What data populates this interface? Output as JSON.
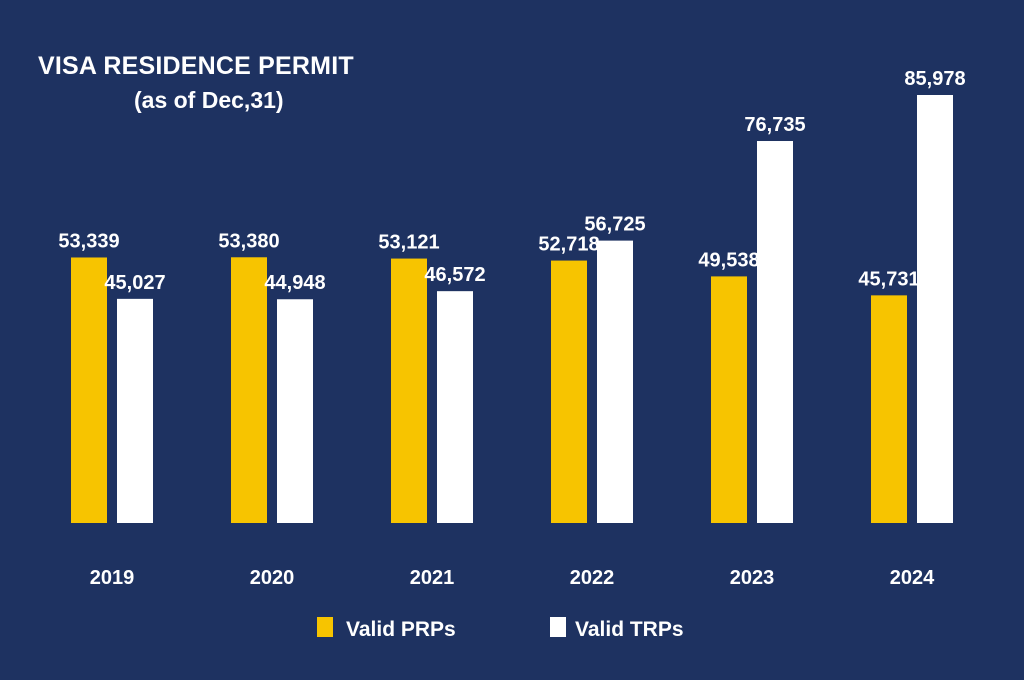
{
  "chart_data": {
    "type": "bar",
    "title": "VISA RESIDENCE PERMIT",
    "subtitle": "(as of Dec,31)",
    "categories": [
      "2019",
      "2020",
      "2021",
      "2022",
      "2023",
      "2024"
    ],
    "series": [
      {
        "name": "Valid PRPs",
        "color": "#f7c400",
        "values": [
          53339,
          53380,
          53121,
          52718,
          49538,
          45731
        ],
        "labels": [
          "53,339",
          "53,380",
          "53,121",
          "52,718",
          "49,538",
          "45,731"
        ]
      },
      {
        "name": "Valid TRPs",
        "color": "#ffffff",
        "values": [
          45027,
          44948,
          46572,
          56725,
          76735,
          85978
        ],
        "labels": [
          "45,027",
          "44,948",
          "46,572",
          "56,725",
          "76,735",
          "85,978"
        ]
      }
    ],
    "ylim": [
      0,
      90000
    ],
    "grid": false,
    "legend_position": "bottom"
  },
  "colors": {
    "background": "#1e3261",
    "text": "#ffffff"
  }
}
